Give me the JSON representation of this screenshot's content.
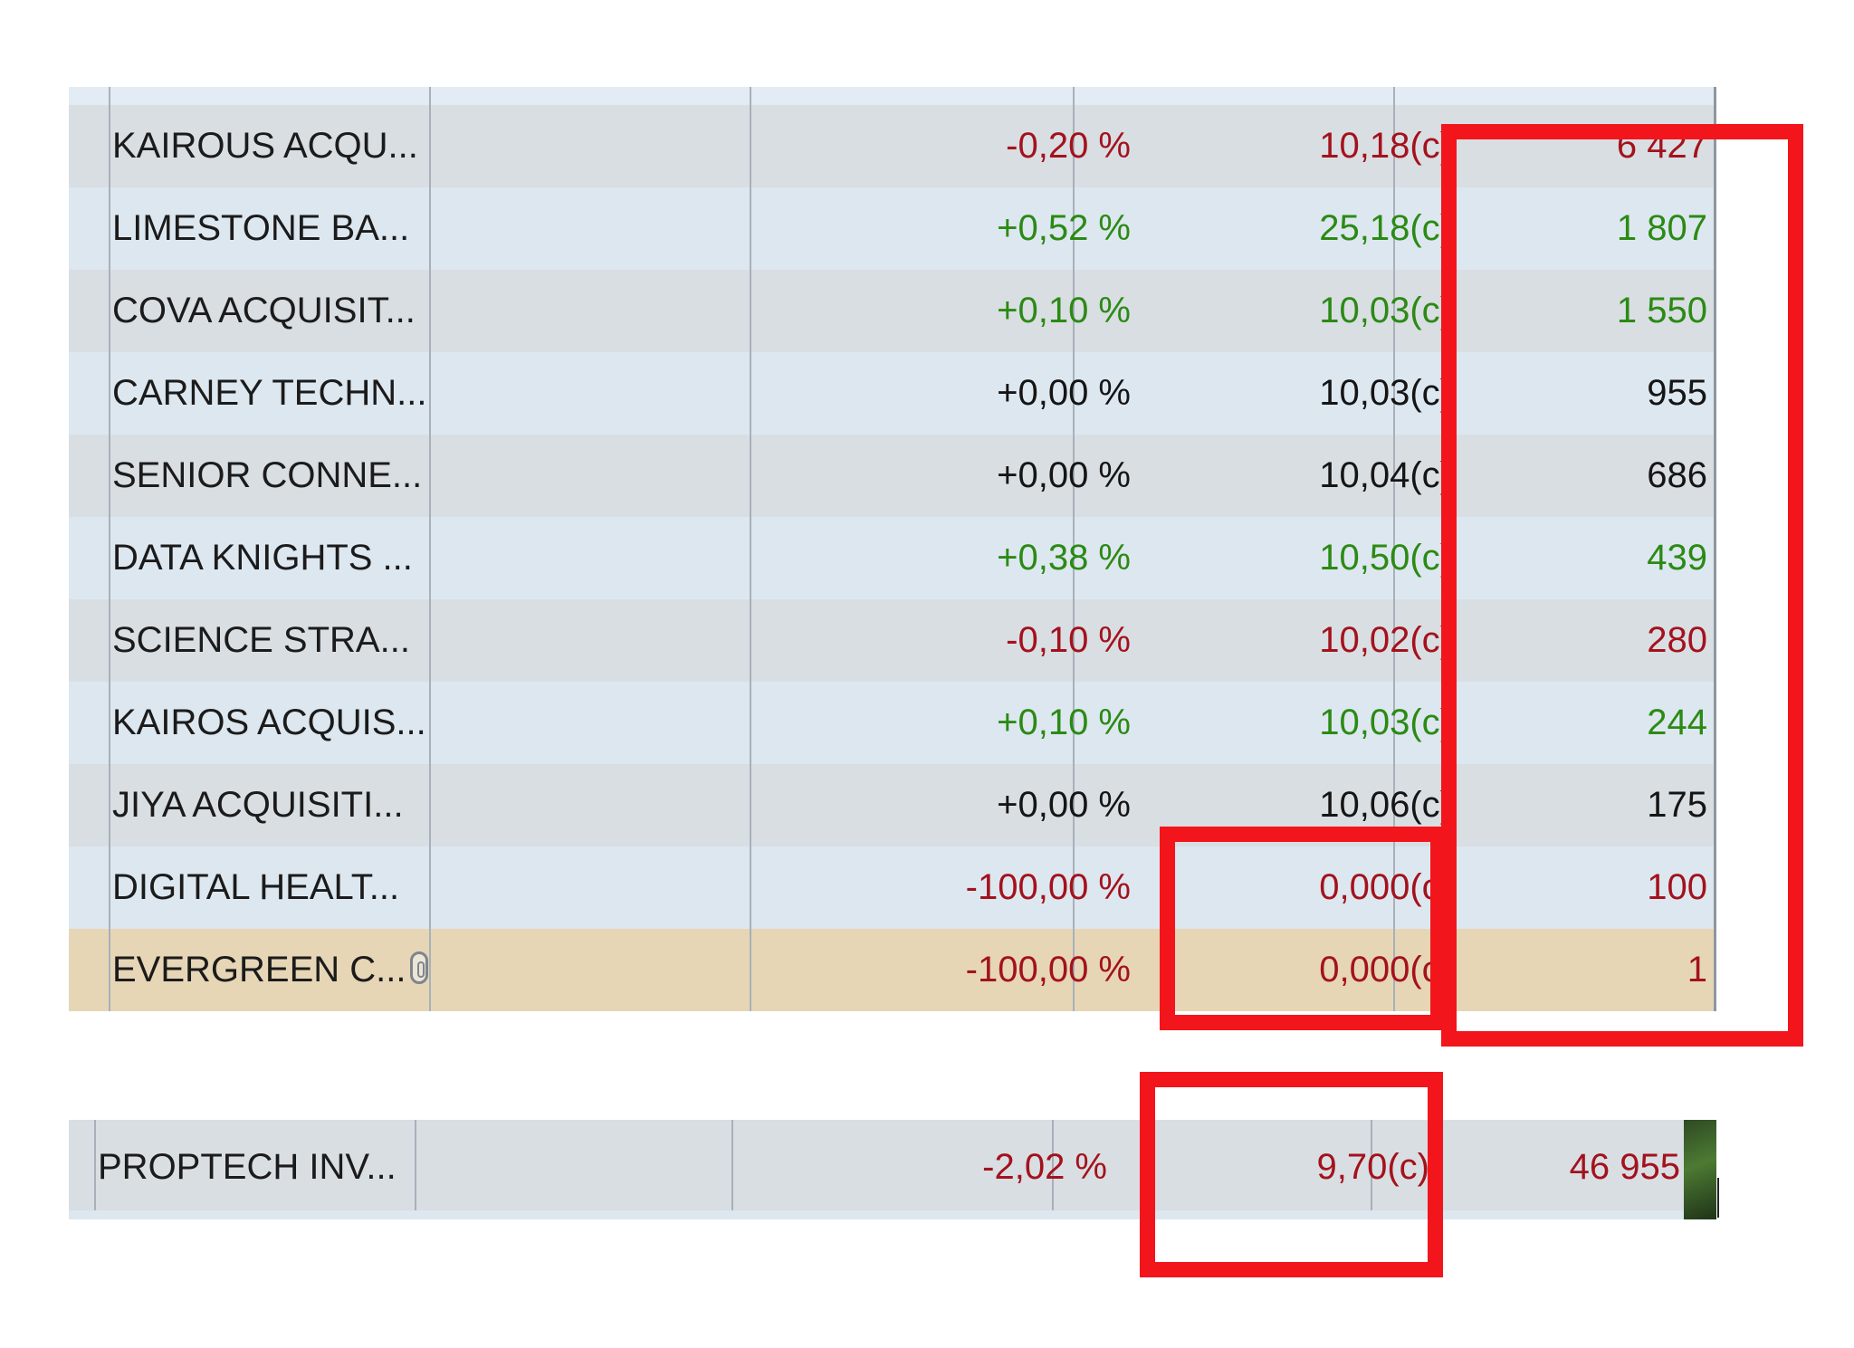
{
  "colors": {
    "up": "#2b8a14",
    "down": "#a3121c",
    "flat": "#151515",
    "highlight": "#f3151c"
  },
  "rows": [
    {
      "name": "KAIROUS ACQU...",
      "change": "-0,20 %",
      "last": "10,18(c)",
      "volume": "6 427",
      "trend": "down"
    },
    {
      "name": "LIMESTONE BA...",
      "change": "+0,52 %",
      "last": "25,18(c)",
      "volume": "1 807",
      "trend": "up"
    },
    {
      "name": "COVA ACQUISIT...",
      "change": "+0,10 %",
      "last": "10,03(c)",
      "volume": "1 550",
      "trend": "up"
    },
    {
      "name": "CARNEY TECHN...",
      "change": "+0,00 %",
      "last": "10,03(c)",
      "volume": "955",
      "trend": "flat"
    },
    {
      "name": "SENIOR CONNE...",
      "change": "+0,00 %",
      "last": "10,04(c)",
      "volume": "686",
      "trend": "flat"
    },
    {
      "name": "DATA KNIGHTS ...",
      "change": "+0,38 %",
      "last": "10,50(c)",
      "volume": "439",
      "trend": "up"
    },
    {
      "name": "SCIENCE STRA...",
      "change": "-0,10 %",
      "last": "10,02(c)",
      "volume": "280",
      "trend": "down"
    },
    {
      "name": "KAIROS ACQUIS...",
      "change": "+0,10 %",
      "last": "10,03(c)",
      "volume": "244",
      "trend": "up"
    },
    {
      "name": "JIYA ACQUISITI...",
      "change": "+0,00 %",
      "last": "10,06(c)",
      "volume": "175",
      "trend": "flat"
    },
    {
      "name": "DIGITAL HEALT...",
      "change": "-100,00 %",
      "last": "0,000(c)",
      "volume": "100",
      "trend": "down"
    },
    {
      "name": "EVERGREEN C...",
      "change": "-100,00 %",
      "last": "0,000(c)",
      "volume": "1",
      "trend": "down",
      "selected": true,
      "link_icon": "link-icon"
    }
  ],
  "bottom_row": {
    "name": "PROPTECH INV...",
    "change": "-2,02 %",
    "last": "9,70(c)",
    "volume": "46 955",
    "trend": "down",
    "thumbnail": "image-thumbnail"
  }
}
